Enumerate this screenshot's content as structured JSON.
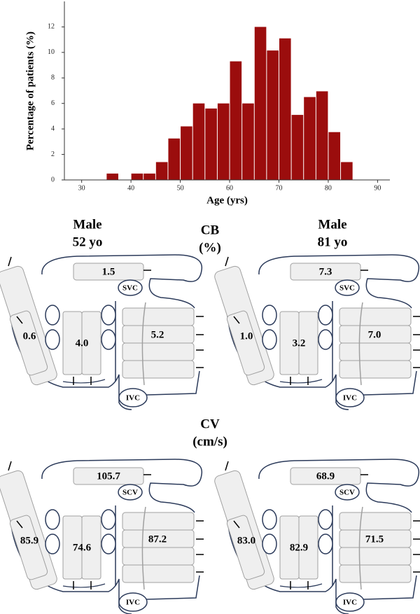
{
  "chart_data": {
    "type": "histogram",
    "xlabel": "Age (yrs)",
    "ylabel": "Percentage of patients (%)",
    "bins": [
      35,
      37.5,
      40,
      42.5,
      45,
      47.5,
      50,
      52.5,
      55,
      57.5,
      60,
      62.5,
      65,
      67.5,
      70,
      72.5,
      75,
      77.5,
      80,
      82.5,
      85
    ],
    "values": [
      0.5,
      0,
      0.5,
      0.5,
      1.4,
      3.25,
      4.2,
      6.0,
      5.6,
      6.0,
      9.3,
      6.0,
      12.0,
      10.15,
      11.1,
      5.1,
      6.5,
      6.95,
      3.75,
      1.4
    ],
    "color": "#9b0d0d",
    "xlim": [
      26.5,
      92.5
    ],
    "xticks": [
      30,
      40,
      50,
      60,
      70,
      80,
      90
    ],
    "ylim": [
      0,
      14
    ],
    "yticks": [
      0,
      2,
      4,
      6,
      8,
      10,
      12
    ]
  },
  "labels": {
    "patient_1": [
      "Male",
      "52 yo"
    ],
    "metric_1": [
      "CB",
      "(%)"
    ],
    "patient_2": [
      "Male",
      "81 yo"
    ],
    "metric_2": [
      "CV",
      "(cm/s)"
    ]
  },
  "diagrams": [
    {
      "top": "1.5",
      "vessel": "SVC",
      "left": "0.6",
      "middle": "4.0",
      "right": "5.2",
      "ivc": "IVC"
    },
    {
      "top": "7.3",
      "vessel": "SVC",
      "left": "1.0",
      "middle": "3.2",
      "right": "7.0",
      "ivc": "IVC"
    },
    {
      "top": "105.7",
      "vessel": "SCV",
      "left": "85.9",
      "middle": "74.6",
      "right": "87.2",
      "ivc": "IVC"
    },
    {
      "top": "68.9",
      "vessel": "SCV",
      "left": "83.0",
      "middle": "82.9",
      "right": "71.5",
      "ivc": "IVC"
    }
  ]
}
